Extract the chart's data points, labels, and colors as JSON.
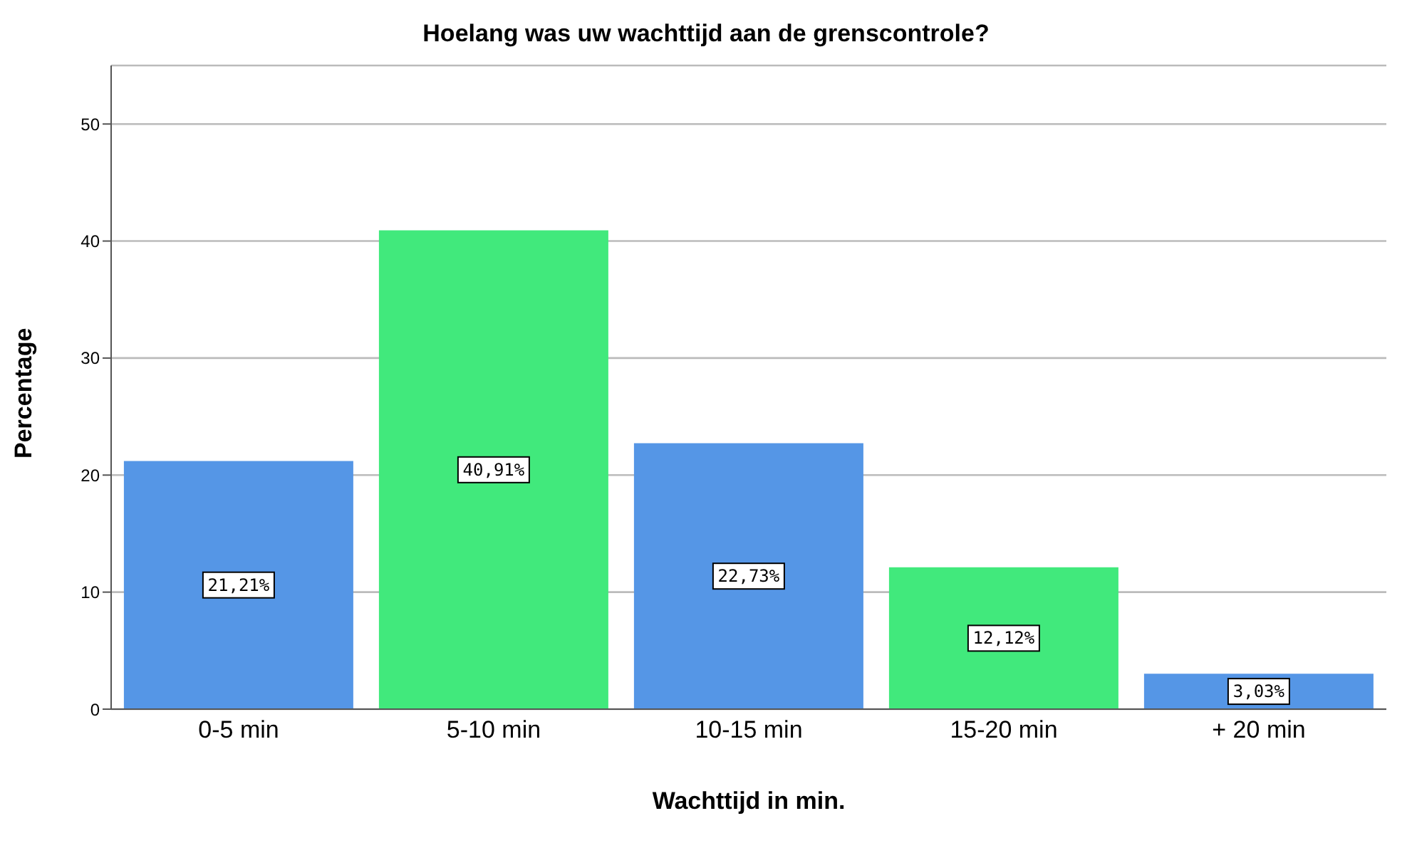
{
  "chart_data": {
    "type": "bar",
    "title": "Hoelang was uw wachttijd aan de grenscontrole?",
    "xlabel": "Wachttijd in min.",
    "ylabel": "Percentage",
    "categories": [
      "0-5 min",
      "5-10 min",
      "10-15 min",
      "15-20 min",
      "+ 20 min"
    ],
    "values": [
      21.21,
      40.91,
      22.73,
      12.12,
      3.03
    ],
    "value_labels": [
      "21,21%",
      "40,91%",
      "22,73%",
      "12,12%",
      "3,03%"
    ],
    "colors": [
      "#5596e6",
      "#41e97c",
      "#5596e6",
      "#41e97c",
      "#5596e6"
    ],
    "ylim": [
      0,
      55
    ],
    "yticks": [
      0,
      10,
      20,
      30,
      40,
      50
    ],
    "grid": "y"
  }
}
